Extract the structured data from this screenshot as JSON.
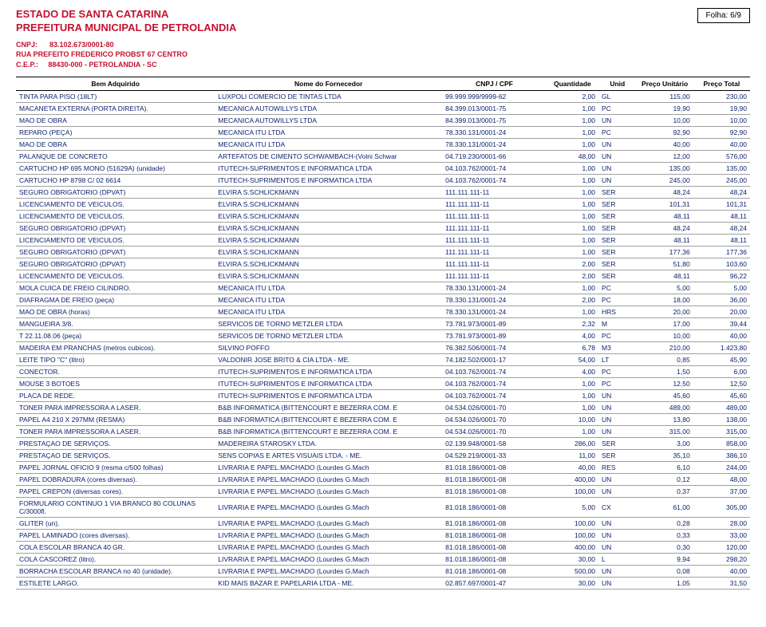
{
  "header": {
    "state": "ESTADO DE SANTA CATARINA",
    "city": "PREFEITURA MUNICIPAL DE PETROLANDIA",
    "cnpj_label": "CNPJ:",
    "cnpj": "83.102.673/0001-80",
    "address": "RUA PREFEITO FREDERICO PROBST 67  CENTRO",
    "cep_label": "C.E.P.:",
    "cep": "88430-000    -  PETROLANDIA             - SC",
    "folha": "Folha: 6/9"
  },
  "columns": {
    "bem": "Bem Adquirido",
    "fornecedor": "Nome do Fornecedor",
    "cnpj": "CNPJ / CPF",
    "quantidade": "Quantidade",
    "unid": "Unid",
    "pu": "Preço Unitário",
    "pt": "Preço Total"
  },
  "rows": [
    {
      "bem": "TINTA PARA PISO (18LT)",
      "forn": "LUXPOLI COMERCIO DE TINTAS LTDA",
      "cnpj": "99.999.999/9999-62",
      "qtd": "2,00",
      "unid": "GL",
      "pu": "115,00",
      "pt": "230,00"
    },
    {
      "bem": "MACANETA EXTERNA (PORTA DIREITA).",
      "forn": "MECANICA AUTOWILLYS LTDA",
      "cnpj": "84.399.013/0001-75",
      "qtd": "1,00",
      "unid": "PC",
      "pu": "19,90",
      "pt": "19,90"
    },
    {
      "bem": "MAO DE OBRA",
      "forn": "MECANICA AUTOWILLYS LTDA",
      "cnpj": "84.399.013/0001-75",
      "qtd": "1,00",
      "unid": "UN",
      "pu": "10,00",
      "pt": "10,00"
    },
    {
      "bem": "REPARO (PEÇA)",
      "forn": "MECANICA ITU LTDA",
      "cnpj": "78.330.131/0001-24",
      "qtd": "1,00",
      "unid": "PC",
      "pu": "92,90",
      "pt": "92,90"
    },
    {
      "bem": "MAO DE OBRA",
      "forn": "MECANICA ITU LTDA",
      "cnpj": "78.330.131/0001-24",
      "qtd": "1,00",
      "unid": "UN",
      "pu": "40,00",
      "pt": "40,00"
    },
    {
      "bem": "PALANQUE DE CONCRETO",
      "forn": "ARTEFATOS DE CIMENTO SCHWAMBACH-(Volni Schwar",
      "cnpj": "04.719.230/0001-66",
      "qtd": "48,00",
      "unid": "UN",
      "pu": "12,00",
      "pt": "576,00"
    },
    {
      "bem": "CARTUCHO HP 695 MONO (51629A) (unidade)",
      "forn": "ITUTECH-SUPRIMENTOS E INFORMATICA LTDA",
      "cnpj": "04.103.762/0001-74",
      "qtd": "1,00",
      "unid": "UN",
      "pu": "135,00",
      "pt": "135,00"
    },
    {
      "bem": "CARTUCHO HP 8798 C/ 02 6614",
      "forn": "ITUTECH-SUPRIMENTOS E INFORMATICA LTDA",
      "cnpj": "04.103.762/0001-74",
      "qtd": "1,00",
      "unid": "UN",
      "pu": "245,00",
      "pt": "245,00"
    },
    {
      "bem": "SEGURO OBRIGATORIO (DPVAT)",
      "forn": "ELVIRA S.SCHLICKMANN",
      "cnpj": "111.111.111-11",
      "qtd": "1,00",
      "unid": "SER",
      "pu": "48,24",
      "pt": "48,24"
    },
    {
      "bem": "LICENCIAMENTO DE VEICULOS.",
      "forn": "ELVIRA S.SCHLICKMANN",
      "cnpj": "111.111.111-11",
      "qtd": "1,00",
      "unid": "SER",
      "pu": "101,31",
      "pt": "101,31"
    },
    {
      "bem": "LICENCIAMENTO DE VEICULOS.",
      "forn": "ELVIRA S.SCHLICKMANN",
      "cnpj": "111.111.111-11",
      "qtd": "1,00",
      "unid": "SER",
      "pu": "48,11",
      "pt": "48,11"
    },
    {
      "bem": "SEGURO OBRIGATORIO (DPVAT)",
      "forn": "ELVIRA S.SCHLICKMANN",
      "cnpj": "111.111.111-11",
      "qtd": "1,00",
      "unid": "SER",
      "pu": "48,24",
      "pt": "48,24"
    },
    {
      "bem": "LICENCIAMENTO DE VEICULOS.",
      "forn": "ELVIRA S.SCHLICKMANN",
      "cnpj": "111.111.111-11",
      "qtd": "1,00",
      "unid": "SER",
      "pu": "48,11",
      "pt": "48,11"
    },
    {
      "bem": "SEGURO OBRIGATORIO (DPVAT)",
      "forn": "ELVIRA S.SCHLICKMANN",
      "cnpj": "111.111.111-11",
      "qtd": "1,00",
      "unid": "SER",
      "pu": "177,36",
      "pt": "177,36"
    },
    {
      "bem": "SEGURO OBRIGATORIO (DPVAT)",
      "forn": "ELVIRA S.SCHLICKMANN",
      "cnpj": "111.111.111-11",
      "qtd": "2,00",
      "unid": "SER",
      "pu": "51,80",
      "pt": "103,60"
    },
    {
      "bem": "LICENCIAMENTO DE VEICULOS.",
      "forn": "ELVIRA S.SCHLICKMANN",
      "cnpj": "111.111.111-11",
      "qtd": "2,00",
      "unid": "SER",
      "pu": "48,11",
      "pt": "96,22"
    },
    {
      "bem": "MOLA CUICA DE FREIO CILINDRO.",
      "forn": "MECANICA ITU LTDA",
      "cnpj": "78.330.131/0001-24",
      "qtd": "1,00",
      "unid": "PC",
      "pu": "5,00",
      "pt": "5,00"
    },
    {
      "bem": "DIAFRAGMA DE FREIO (peça)",
      "forn": "MECANICA ITU LTDA",
      "cnpj": "78.330.131/0001-24",
      "qtd": "2,00",
      "unid": "PC",
      "pu": "18,00",
      "pt": "36,00"
    },
    {
      "bem": "MAO DE OBRA (horas)",
      "forn": "MECANICA ITU LTDA",
      "cnpj": "78.330.131/0001-24",
      "qtd": "1,00",
      "unid": "HRS",
      "pu": "20,00",
      "pt": "20,00"
    },
    {
      "bem": "MANGUEIRA 3/8.",
      "forn": "SERVICOS DE TORNO METZLER LTDA",
      "cnpj": "73.781.973/0001-89",
      "qtd": "2,32",
      "unid": "M",
      "pu": "17,00",
      "pt": "39,44"
    },
    {
      "bem": "T 22.11.08.06 (peça)",
      "forn": "SERVICOS DE TORNO METZLER LTDA",
      "cnpj": "73.781.973/0001-89",
      "qtd": "4,00",
      "unid": "PC",
      "pu": "10,00",
      "pt": "40,00"
    },
    {
      "bem": "MADEIRA EM PRANCHAS (metros cubicos).",
      "forn": "SILVINO POFFO",
      "cnpj": "76.382.506/0001-74",
      "qtd": "6,78",
      "unid": "M3",
      "pu": "210,00",
      "pt": "1.423,80"
    },
    {
      "bem": "LEITE TIPO \"C\" (litro)",
      "forn": "VALDONIR JOSE BRITO & CIA LTDA - ME.",
      "cnpj": "74.182.502/0001-17",
      "qtd": "54,00",
      "unid": "LT",
      "pu": "0,85",
      "pt": "45,90"
    },
    {
      "bem": "CONECTOR.",
      "forn": "ITUTECH-SUPRIMENTOS E INFORMATICA LTDA",
      "cnpj": "04.103.762/0001-74",
      "qtd": "4,00",
      "unid": "PC",
      "pu": "1,50",
      "pt": "6,00"
    },
    {
      "bem": "MOUSE 3 BOTOES",
      "forn": "ITUTECH-SUPRIMENTOS E INFORMATICA LTDA",
      "cnpj": "04.103.762/0001-74",
      "qtd": "1,00",
      "unid": "PC",
      "pu": "12,50",
      "pt": "12,50"
    },
    {
      "bem": "PLACA DE REDE.",
      "forn": "ITUTECH-SUPRIMENTOS E INFORMATICA LTDA",
      "cnpj": "04.103.762/0001-74",
      "qtd": "1,00",
      "unid": "UN",
      "pu": "45,60",
      "pt": "45,60"
    },
    {
      "bem": "TONER PARA IMPRESSORA A LASER.",
      "forn": "B&B INFORMATICA (BITTENCOURT E BEZERRA COM. E",
      "cnpj": "04.534.026/0001-70",
      "qtd": "1,00",
      "unid": "UN",
      "pu": "489,00",
      "pt": "489,00"
    },
    {
      "bem": "PAPEL A4   210 X 297MM (RESMA)",
      "forn": "B&B INFORMATICA (BITTENCOURT E BEZERRA COM. E",
      "cnpj": "04.534.026/0001-70",
      "qtd": "10,00",
      "unid": "UN",
      "pu": "13,80",
      "pt": "138,00"
    },
    {
      "bem": "TONER PARA IMPRESSORA A LASER.",
      "forn": "B&B INFORMATICA (BITTENCOURT E BEZERRA COM. E",
      "cnpj": "04.534.026/0001-70",
      "qtd": "1,00",
      "unid": "UN",
      "pu": "315,00",
      "pt": "315,00"
    },
    {
      "bem": "PRESTAÇAO DE SERVIÇOS.",
      "forn": "MADEREIRA STAROSKY LTDA.",
      "cnpj": "02.139.948/0001-58",
      "qtd": "286,00",
      "unid": "SER",
      "pu": "3,00",
      "pt": "858,00"
    },
    {
      "bem": "PRESTAÇAO DE SERVIÇOS.",
      "forn": "SENS COPIAS E ARTES VISUAIS LTDA. - ME.",
      "cnpj": "04.529.219/0001-33",
      "qtd": "11,00",
      "unid": "SER",
      "pu": "35,10",
      "pt": "386,10"
    },
    {
      "bem": "PAPEL JORNAL OFICIO 9 (resma c/500 folhas)",
      "forn": "LIVRARIA E PAPEL.MACHADO (Lourdes G.Mach",
      "cnpj": "81.018.186/0001-08",
      "qtd": "40,00",
      "unid": "RES",
      "pu": "6,10",
      "pt": "244,00"
    },
    {
      "bem": "PAPEL DOBRADURA (cores diversas).",
      "forn": "LIVRARIA E PAPEL.MACHADO (Lourdes G.Mach",
      "cnpj": "81.018.186/0001-08",
      "qtd": "400,00",
      "unid": "UN",
      "pu": "0,12",
      "pt": "48,00"
    },
    {
      "bem": "PAPEL CREPON (diversas cores).",
      "forn": "LIVRARIA E PAPEL.MACHADO (Lourdes G.Mach",
      "cnpj": "81.018.186/0001-08",
      "qtd": "100,00",
      "unid": "UN",
      "pu": "0,37",
      "pt": "37,00"
    },
    {
      "bem": "FORMULARIO CONTINUO 1 VIA BRANCO 80 COLUNAS C/3000fl.",
      "forn": "LIVRARIA E PAPEL.MACHADO (Lourdes G.Mach",
      "cnpj": "81.018.186/0001-08",
      "qtd": "5,00",
      "unid": "CX",
      "pu": "61,00",
      "pt": "305,00"
    },
    {
      "bem": "GLITER (un).",
      "forn": "LIVRARIA E PAPEL.MACHADO (Lourdes G.Mach",
      "cnpj": "81.018.186/0001-08",
      "qtd": "100,00",
      "unid": "UN",
      "pu": "0,28",
      "pt": "28,00"
    },
    {
      "bem": "PAPEL LAMINADO (cores diversas).",
      "forn": "LIVRARIA E PAPEL.MACHADO (Lourdes G.Mach",
      "cnpj": "81.018.186/0001-08",
      "qtd": "100,00",
      "unid": "UN",
      "pu": "0,33",
      "pt": "33,00"
    },
    {
      "bem": "COLA ESCOLAR BRANCA 40 GR.",
      "forn": "LIVRARIA E PAPEL.MACHADO (Lourdes G.Mach",
      "cnpj": "81.018.186/0001-08",
      "qtd": "400,00",
      "unid": "UN",
      "pu": "0,30",
      "pt": "120,00"
    },
    {
      "bem": "COLA CASCOREZ (litro).",
      "forn": "LIVRARIA E PAPEL.MACHADO (Lourdes G.Mach",
      "cnpj": "81.018.186/0001-08",
      "qtd": "30,00",
      "unid": "L",
      "pu": "9,94",
      "pt": "298,20"
    },
    {
      "bem": "BORRACHA ESCOLAR BRANCA no 40 (unidade).",
      "forn": "LIVRARIA E PAPEL.MACHADO (Lourdes G.Mach",
      "cnpj": "81.018.186/0001-08",
      "qtd": "500,00",
      "unid": "UN",
      "pu": "0,08",
      "pt": "40,00"
    },
    {
      "bem": "ESTILETE LARGO.",
      "forn": "KID MAIS BAZAR E PAPELARIA LTDA - ME.",
      "cnpj": "02.857.697/0001-47",
      "qtd": "30,00",
      "unid": "UN",
      "pu": "1,05",
      "pt": "31,50"
    }
  ]
}
